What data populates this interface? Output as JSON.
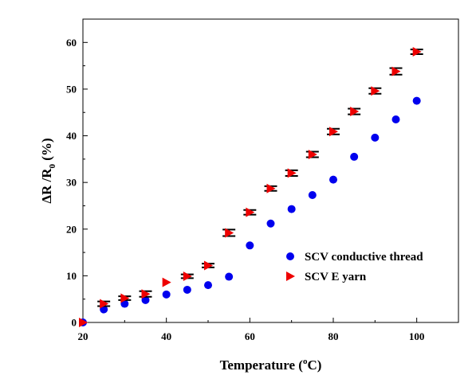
{
  "chart_data": {
    "type": "scatter",
    "xlabel": {
      "main": "Temperature (",
      "sup": "o",
      "tail": "C)"
    },
    "ylabel": {
      "main": "ΔR /R",
      "sub": "0",
      "tail": " (%)"
    },
    "xlim": [
      20,
      110
    ],
    "ylim": [
      0,
      65
    ],
    "xticks": [
      20,
      40,
      60,
      80,
      100
    ],
    "yticks": [
      0,
      10,
      20,
      30,
      40,
      50,
      60
    ],
    "grid": false,
    "legend_position": "lower-right",
    "series": [
      {
        "name": "SCV conductive thread",
        "marker": "circle",
        "color": "#0000ee",
        "points": [
          {
            "x": 20,
            "y": 0
          },
          {
            "x": 25,
            "y": 2.8
          },
          {
            "x": 30,
            "y": 4.0
          },
          {
            "x": 35,
            "y": 4.8
          },
          {
            "x": 40,
            "y": 6.0
          },
          {
            "x": 45,
            "y": 7.0
          },
          {
            "x": 50,
            "y": 8.0
          },
          {
            "x": 55,
            "y": 9.8
          },
          {
            "x": 60,
            "y": 16.5
          },
          {
            "x": 65,
            "y": 21.2
          },
          {
            "x": 70,
            "y": 24.3
          },
          {
            "x": 75,
            "y": 27.3
          },
          {
            "x": 80,
            "y": 30.6
          },
          {
            "x": 85,
            "y": 35.5
          },
          {
            "x": 90,
            "y": 39.6
          },
          {
            "x": 95,
            "y": 43.5
          },
          {
            "x": 100,
            "y": 47.5
          }
        ]
      },
      {
        "name": "SCV E yarn",
        "marker": "triangle-right",
        "color": "#ee0000",
        "points": [
          {
            "x": 20,
            "y": 0,
            "err": 0
          },
          {
            "x": 25,
            "y": 4.0,
            "err": 0.5
          },
          {
            "x": 30,
            "y": 5.2,
            "err": 0.4
          },
          {
            "x": 35,
            "y": 6.1,
            "err": 0.6
          },
          {
            "x": 40,
            "y": 8.6,
            "err": 0
          },
          {
            "x": 45,
            "y": 9.9,
            "err": 0.4
          },
          {
            "x": 50,
            "y": 12.2,
            "err": 0.4
          },
          {
            "x": 55,
            "y": 19.2,
            "err": 0.7
          },
          {
            "x": 60,
            "y": 23.6,
            "err": 0.5
          },
          {
            "x": 65,
            "y": 28.7,
            "err": 0.5
          },
          {
            "x": 70,
            "y": 32.0,
            "err": 0.6
          },
          {
            "x": 75,
            "y": 36.0,
            "err": 0.6
          },
          {
            "x": 80,
            "y": 40.9,
            "err": 0.6
          },
          {
            "x": 85,
            "y": 45.2,
            "err": 0.6
          },
          {
            "x": 90,
            "y": 49.6,
            "err": 0.6
          },
          {
            "x": 95,
            "y": 53.8,
            "err": 0.7
          },
          {
            "x": 100,
            "y": 58.0,
            "err": 0.5
          }
        ]
      }
    ]
  }
}
